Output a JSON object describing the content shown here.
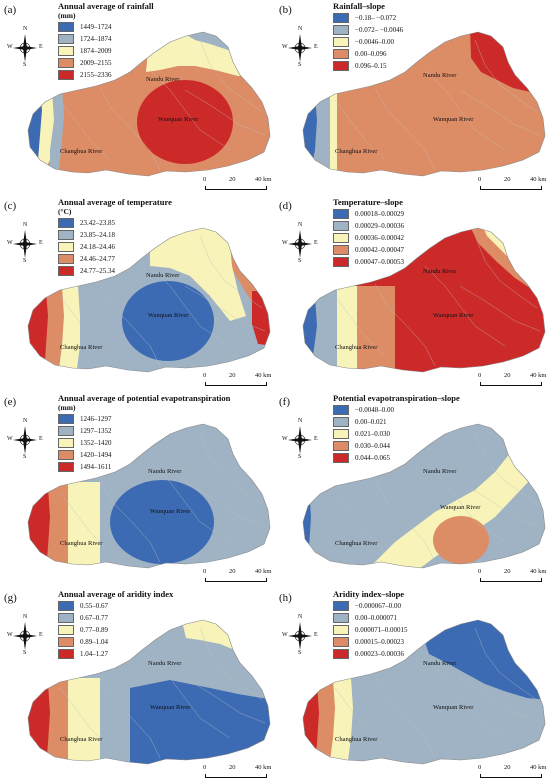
{
  "figure": {
    "river_labels": {
      "nandu": "Nandu River",
      "wanquan": "Wanquan River",
      "changhua": "Changhua River"
    },
    "compass": {
      "n": "N",
      "s": "S",
      "w": "W",
      "e": "E"
    },
    "scale": {
      "t0": "0",
      "t1": "20",
      "t2": "40 km"
    },
    "colors": {
      "blue": "#3d6bb3",
      "grayblue": "#9fb3c5",
      "yellow": "#f7f3b9",
      "orange": "#dd8d66",
      "red": "#cc2a29",
      "boundary": "#bfbfbf"
    }
  },
  "panels": [
    {
      "label": "(a)",
      "legend_title": "Annual average of rainfall",
      "legend_unit": "(mm)",
      "classes": [
        "1449–1724",
        "1724–1874",
        "1874–2009",
        "2009–2155",
        "2155–2336"
      ]
    },
    {
      "label": "(b)",
      "legend_title": "Rainfall–slope",
      "legend_unit": "",
      "classes": [
        "−0.18– −0.072",
        "−0.072– −0.0046",
        "−0.0046–0.00",
        "0.00–0.096",
        "0.096–0.15"
      ]
    },
    {
      "label": "(c)",
      "legend_title": "Annual average of temperature",
      "legend_unit": "(°C)",
      "classes": [
        "23.42–23.85",
        "23.85–24.18",
        "24.18–24.46",
        "24.46–24.77",
        "24.77–25.34"
      ]
    },
    {
      "label": "(d)",
      "legend_title": "Temperature–slope",
      "legend_unit": "",
      "classes": [
        "0.00018–0.00029",
        "0.00029–0.00036",
        "0.00036–0.00042",
        "0.00042–0.00047",
        "0.00047–0.00053"
      ]
    },
    {
      "label": "(e)",
      "legend_title": "Annual average of potential evapotranspiration",
      "legend_unit": "(mm)",
      "classes": [
        "1246–1297",
        "1297–1352",
        "1352–1420",
        "1420–1494",
        "1494–1611"
      ]
    },
    {
      "label": "(f)",
      "legend_title": "Potential evapotranspiration–slope",
      "legend_unit": "",
      "classes": [
        "−0.0048–0.00",
        "0.00–0.021",
        "0.021–0.030",
        "0.030–0.044",
        "0.044–0.065"
      ]
    },
    {
      "label": "(g)",
      "legend_title": "Annual average of aridity index",
      "legend_unit": "",
      "classes": [
        "0.55–0.67",
        "0.67–0.77",
        "0.77–0.89",
        "0.89–1.04",
        "1.04–1.27"
      ]
    },
    {
      "label": "(h)",
      "legend_title": "Aridity index–slope",
      "legend_unit": "",
      "classes": [
        "−0.000067–0.00",
        "0.00–0.000071",
        "0.000071–0.00015",
        "0.00015–0.00023",
        "0.00023–0.00036"
      ]
    }
  ]
}
